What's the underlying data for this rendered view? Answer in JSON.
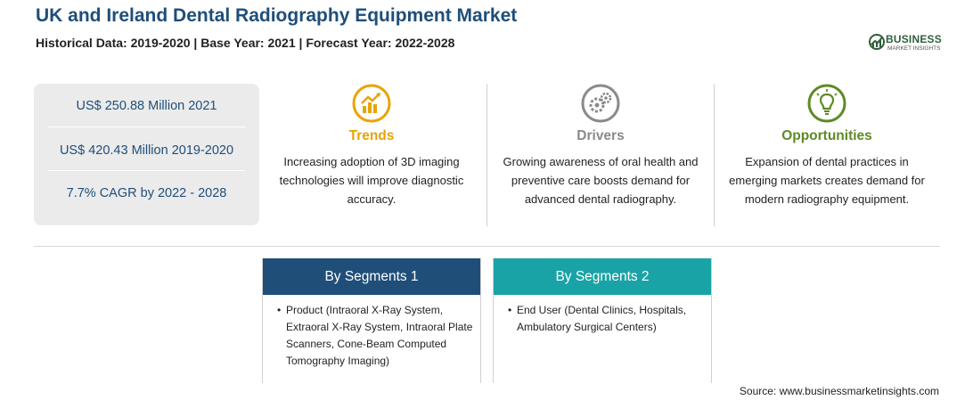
{
  "header": {
    "title": "UK and Ireland Dental Radiography Equipment Market",
    "subtitle": "Historical Data: 2019-2020 | Base Year: 2021 | Forecast Year: 2022-2028"
  },
  "logo": {
    "line1": "BUSINESS",
    "line2": "MARKET INSIGHTS",
    "color": "#2f5f3a"
  },
  "stats": [
    {
      "value": "US$ 250.88 Million 2021"
    },
    {
      "value": "US$ 420.43 Million 2019-2020"
    },
    {
      "value": "7.7% CAGR by 2022 - 2028"
    }
  ],
  "insights": [
    {
      "title": "Trends",
      "icon": "chart-growth-icon",
      "color": "#e8a400",
      "text": "Increasing adoption of 3D imaging technologies will improve diagnostic accuracy."
    },
    {
      "title": "Drivers",
      "icon": "gears-icon",
      "color": "#8a8a8a",
      "text": "Growing awareness of oral health and preventive care boosts demand for advanced dental radiography."
    },
    {
      "title": "Opportunities",
      "icon": "lightbulb-icon",
      "color": "#5f8a24",
      "text": "Expansion of dental practices in emerging markets creates demand for modern radiography equipment."
    }
  ],
  "segments": [
    {
      "title": "By Segments 1",
      "color": "#1f4e79",
      "items": [
        "Product (Intraoral X-Ray System, Extraoral X-Ray System, Intraoral Plate Scanners, Cone-Beam Computed Tomography Imaging)"
      ]
    },
    {
      "title": "By Segments 2",
      "color": "#1aa3a6",
      "items": [
        "End User (Dental Clinics, Hospitals, Ambulatory Surgical Centers)"
      ]
    }
  ],
  "source": "Source: www.businessmarketinsights.com"
}
